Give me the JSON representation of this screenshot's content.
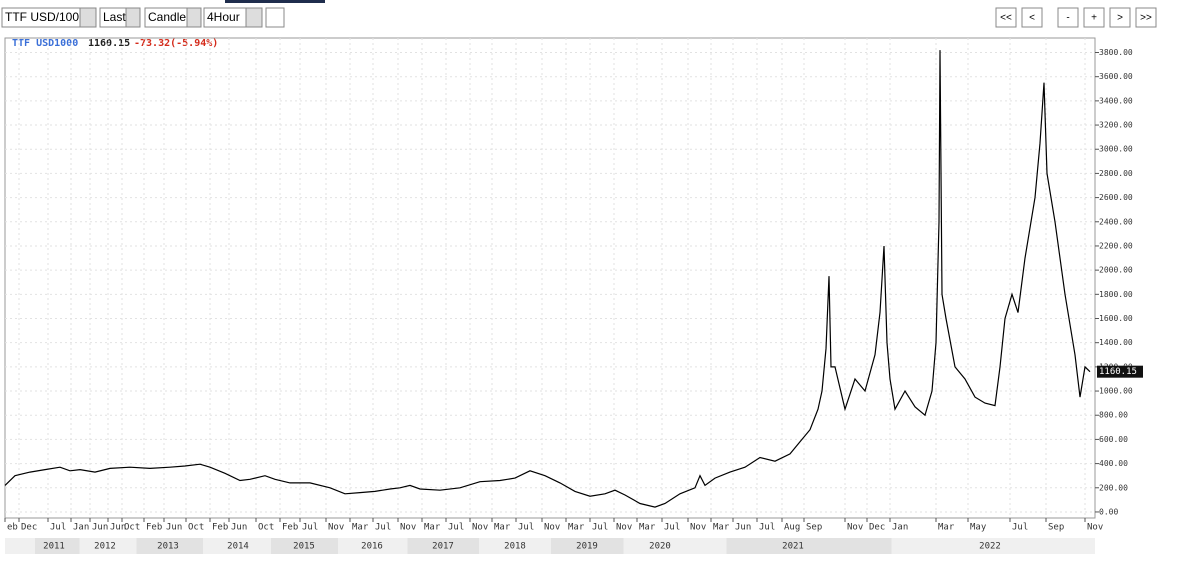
{
  "toolbar": {
    "symbol": "TTF USD/100",
    "price_type": "Last",
    "chart_style": "Candle",
    "interval": "4Hour",
    "nav": [
      "<<",
      "<",
      "-",
      "+",
      ">",
      ">>"
    ]
  },
  "chart_data": {
    "type": "line",
    "header": {
      "symbol": "TTF USD1000",
      "price": "1160.15",
      "change": "-73.32(-5.94%)"
    },
    "series": [
      {
        "name": "TTF USD1000",
        "color": "#000000",
        "x": [
          0,
          10,
          25,
          40,
          55,
          65,
          75,
          90,
          105,
          125,
          145,
          165,
          180,
          195,
          205,
          220,
          235,
          245,
          260,
          270,
          285,
          305,
          325,
          340,
          355,
          370,
          385,
          395,
          405,
          415,
          435,
          455,
          475,
          495,
          510,
          525,
          540,
          555,
          570,
          585,
          600,
          610,
          620,
          635,
          650,
          660,
          675,
          690,
          695,
          700,
          710,
          725,
          740,
          755,
          770,
          785,
          795,
          805,
          813,
          817,
          821,
          824,
          826,
          830,
          840,
          850,
          860,
          870,
          875,
          879,
          882,
          885,
          890,
          900,
          910,
          920,
          927,
          931,
          934,
          935,
          937,
          941,
          950,
          960,
          970,
          980,
          990,
          995,
          1000,
          1007,
          1013,
          1020,
          1030,
          1035,
          1039,
          1042,
          1050,
          1060,
          1070,
          1075,
          1080,
          1085
        ],
        "values": [
          220,
          300,
          330,
          350,
          370,
          340,
          350,
          330,
          360,
          370,
          360,
          370,
          380,
          395,
          370,
          320,
          260,
          270,
          300,
          270,
          240,
          240,
          200,
          150,
          160,
          170,
          190,
          200,
          220,
          190,
          180,
          200,
          250,
          260,
          280,
          340,
          300,
          240,
          170,
          130,
          150,
          180,
          140,
          70,
          40,
          70,
          150,
          200,
          300,
          220,
          280,
          330,
          370,
          450,
          420,
          480,
          580,
          680,
          850,
          1000,
          1350,
          1950,
          1200,
          1200,
          850,
          1100,
          1000,
          1300,
          1650,
          2200,
          1400,
          1100,
          850,
          1000,
          870,
          800,
          1000,
          1400,
          2400,
          3820,
          1800,
          1600,
          1200,
          1100,
          950,
          900,
          880,
          1200,
          1600,
          1800,
          1650,
          2100,
          2600,
          3050,
          3550,
          2800,
          2400,
          1800,
          1300,
          950,
          1200,
          1160.15
        ]
      }
    ],
    "xlim": [
      0,
      1090
    ],
    "ylim": [
      -50,
      3920
    ],
    "yticks": [
      {
        "value": 0,
        "label": "0.00"
      },
      {
        "value": 200,
        "label": "200.00"
      },
      {
        "value": 400,
        "label": "400.00"
      },
      {
        "value": 600,
        "label": "600.00"
      },
      {
        "value": 800,
        "label": "800.00"
      },
      {
        "value": 1000,
        "label": "1000.00"
      },
      {
        "value": 1200,
        "label": "1200.00"
      },
      {
        "value": 1400,
        "label": "1400.00"
      },
      {
        "value": 1600,
        "label": "1600.00"
      },
      {
        "value": 1800,
        "label": "1800.00"
      },
      {
        "value": 2000,
        "label": "2000.00"
      },
      {
        "value": 2200,
        "label": "2200.00"
      },
      {
        "value": 2400,
        "label": "2400.00"
      },
      {
        "value": 2600,
        "label": "2600.00"
      },
      {
        "value": 2800,
        "label": "2800.00"
      },
      {
        "value": 3000,
        "label": "3000.00"
      },
      {
        "value": 3200,
        "label": "3200.00"
      },
      {
        "value": 3400,
        "label": "3400.00"
      },
      {
        "value": 3600,
        "label": "3600.00"
      },
      {
        "value": 3800,
        "label": "3800.00"
      }
    ],
    "xticks": [
      {
        "value": 0,
        "label": "eb"
      },
      {
        "value": 14,
        "label": "Dec"
      },
      {
        "value": 43,
        "label": "Jul"
      },
      {
        "value": 66,
        "label": "Jan"
      },
      {
        "value": 85,
        "label": "Jun"
      },
      {
        "value": 103,
        "label": "Jun"
      },
      {
        "value": 117,
        "label": "Oct"
      },
      {
        "value": 139,
        "label": "Feb"
      },
      {
        "value": 159,
        "label": "Jun"
      },
      {
        "value": 181,
        "label": "Oct"
      },
      {
        "value": 205,
        "label": "Feb"
      },
      {
        "value": 224,
        "label": "Jun"
      },
      {
        "value": 251,
        "label": "Oct"
      },
      {
        "value": 275,
        "label": "Feb"
      },
      {
        "value": 295,
        "label": "Jul"
      },
      {
        "value": 321,
        "label": "Nov"
      },
      {
        "value": 345,
        "label": "Mar"
      },
      {
        "value": 368,
        "label": "Jul"
      },
      {
        "value": 393,
        "label": "Nov"
      },
      {
        "value": 417,
        "label": "Mar"
      },
      {
        "value": 441,
        "label": "Jul"
      },
      {
        "value": 465,
        "label": "Nov"
      },
      {
        "value": 487,
        "label": "Mar"
      },
      {
        "value": 511,
        "label": "Jul"
      },
      {
        "value": 537,
        "label": "Nov"
      },
      {
        "value": 561,
        "label": "Mar"
      },
      {
        "value": 585,
        "label": "Jul"
      },
      {
        "value": 609,
        "label": "Nov"
      },
      {
        "value": 632,
        "label": "Mar"
      },
      {
        "value": 657,
        "label": "Jul"
      },
      {
        "value": 683,
        "label": "Nov"
      },
      {
        "value": 706,
        "label": "Mar"
      },
      {
        "value": 728,
        "label": "Jun"
      },
      {
        "value": 752,
        "label": "Jul"
      },
      {
        "value": 777,
        "label": "Aug"
      },
      {
        "value": 799,
        "label": "Sep"
      },
      {
        "value": 840,
        "label": "Nov"
      },
      {
        "value": 862,
        "label": "Dec"
      },
      {
        "value": 885,
        "label": "Jan"
      },
      {
        "value": 931,
        "label": "Mar"
      },
      {
        "value": 963,
        "label": "May"
      },
      {
        "value": 1005,
        "label": "Jul"
      },
      {
        "value": 1041,
        "label": "Sep"
      },
      {
        "value": 1080,
        "label": "Nov"
      }
    ],
    "year_ticks": [
      {
        "value": 49,
        "label": "2011"
      },
      {
        "value": 100,
        "label": "2012"
      },
      {
        "value": 163,
        "label": "2013"
      },
      {
        "value": 233,
        "label": "2014"
      },
      {
        "value": 299,
        "label": "2015"
      },
      {
        "value": 367,
        "label": "2016"
      },
      {
        "value": 438,
        "label": "2017"
      },
      {
        "value": 510,
        "label": "2018"
      },
      {
        "value": 582,
        "label": "2019"
      },
      {
        "value": 655,
        "label": "2020"
      },
      {
        "value": 788,
        "label": "2021"
      },
      {
        "value": 985,
        "label": "2022"
      }
    ],
    "grid": true
  }
}
